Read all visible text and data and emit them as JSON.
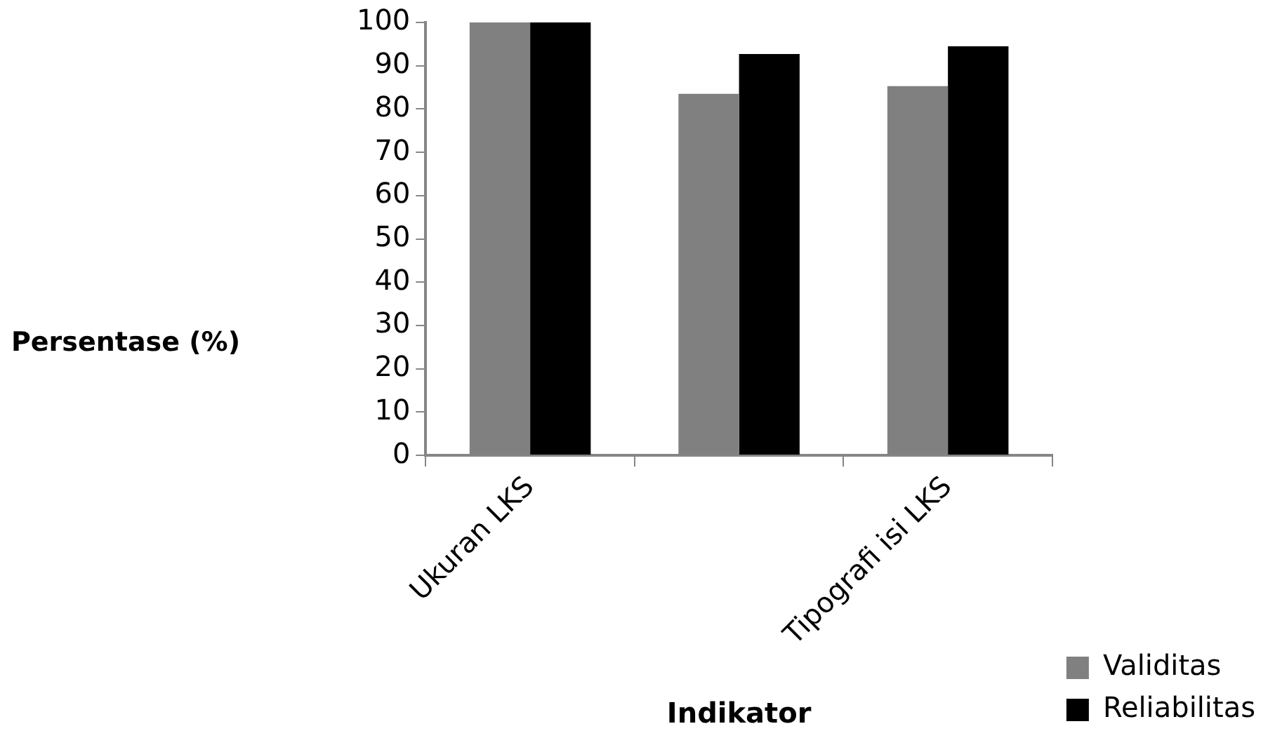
{
  "chart_data": {
    "type": "bar",
    "xlabel": "Indikator",
    "ylabel": "Persentase (%)",
    "categories": [
      "Ukuran LKS",
      null,
      "Tipografi isi LKS"
    ],
    "series": [
      {
        "name": "Validitas",
        "color": "#808080",
        "values": [
          100,
          83.5,
          85.3
        ]
      },
      {
        "name": "Reliabilitas",
        "color": "#000000",
        "values": [
          100,
          92.7,
          94.5
        ]
      }
    ],
    "ylim": [
      0,
      100
    ],
    "yticks": [
      0,
      10,
      20,
      30,
      40,
      50,
      60,
      70,
      80,
      90,
      100
    ],
    "grid": false,
    "legend": "right"
  }
}
